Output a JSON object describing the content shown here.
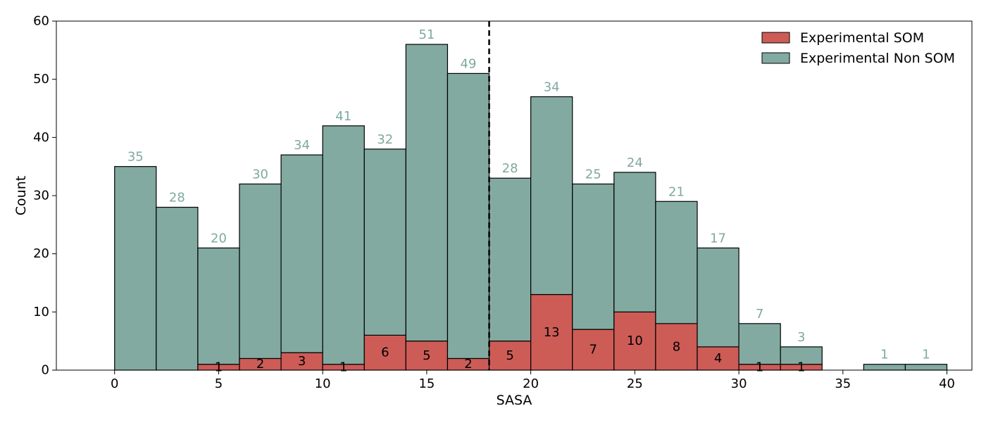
{
  "chart_data": {
    "type": "bar",
    "subtype": "stacked-histogram",
    "xlabel": "SASA",
    "ylabel": "Count",
    "xlim": [
      -2.8,
      41.2
    ],
    "ylim": [
      0,
      60
    ],
    "xticks": [
      0,
      5,
      10,
      15,
      20,
      25,
      30,
      35,
      40
    ],
    "xtick_labels": [
      "0",
      "5",
      "10",
      "15",
      "20",
      "25",
      "30",
      "35",
      "40"
    ],
    "yticks": [
      0,
      10,
      20,
      30,
      40,
      50,
      60
    ],
    "ytick_labels": [
      "0",
      "10",
      "20",
      "30",
      "40",
      "50",
      "60"
    ],
    "bin_width": 2,
    "bins": [
      {
        "x0": 0,
        "x1": 2,
        "som": 0,
        "nonsom": 35
      },
      {
        "x0": 2,
        "x1": 4,
        "som": 0,
        "nonsom": 28
      },
      {
        "x0": 4,
        "x1": 6,
        "som": 1,
        "nonsom": 20
      },
      {
        "x0": 6,
        "x1": 8,
        "som": 2,
        "nonsom": 30
      },
      {
        "x0": 8,
        "x1": 10,
        "som": 3,
        "nonsom": 34
      },
      {
        "x0": 10,
        "x1": 12,
        "som": 1,
        "nonsom": 41
      },
      {
        "x0": 12,
        "x1": 14,
        "som": 6,
        "nonsom": 32
      },
      {
        "x0": 14,
        "x1": 16,
        "som": 5,
        "nonsom": 51
      },
      {
        "x0": 16,
        "x1": 18,
        "som": 2,
        "nonsom": 49
      },
      {
        "x0": 18,
        "x1": 20,
        "som": 5,
        "nonsom": 28
      },
      {
        "x0": 20,
        "x1": 22,
        "som": 13,
        "nonsom": 34
      },
      {
        "x0": 22,
        "x1": 24,
        "som": 7,
        "nonsom": 25
      },
      {
        "x0": 24,
        "x1": 26,
        "som": 10,
        "nonsom": 24
      },
      {
        "x0": 26,
        "x1": 28,
        "som": 8,
        "nonsom": 21
      },
      {
        "x0": 28,
        "x1": 30,
        "som": 4,
        "nonsom": 17
      },
      {
        "x0": 30,
        "x1": 32,
        "som": 1,
        "nonsom": 7
      },
      {
        "x0": 32,
        "x1": 34,
        "som": 1,
        "nonsom": 3
      },
      {
        "x0": 34,
        "x1": 36,
        "som": 0,
        "nonsom": 0
      },
      {
        "x0": 36,
        "x1": 38,
        "som": 0,
        "nonsom": 1
      },
      {
        "x0": 38,
        "x1": 40,
        "som": 0,
        "nonsom": 1
      }
    ],
    "series": [
      {
        "name": "Experimental SOM",
        "key": "som",
        "color": "#cd5c57"
      },
      {
        "name": "Experimental Non SOM",
        "key": "nonsom",
        "color": "#82aaa1"
      }
    ],
    "vline": {
      "x": 18,
      "style": "dashed",
      "color": "#000000"
    },
    "label_colors": {
      "nonsom": "#7fa9a0",
      "som": "#000000"
    },
    "legend": {
      "position": "top-right"
    },
    "grid": false
  }
}
